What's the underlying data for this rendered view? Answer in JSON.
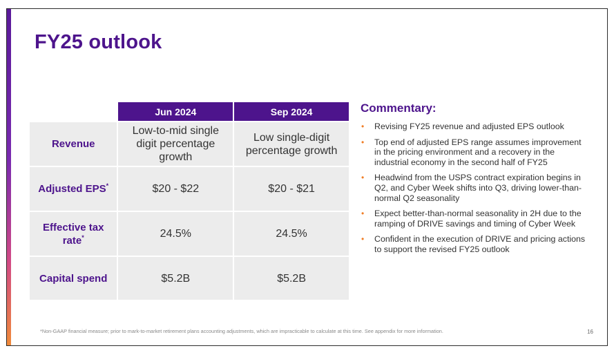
{
  "title": "FY25 outlook",
  "table": {
    "columns": [
      "Jun 2024",
      "Sep 2024"
    ],
    "rows": [
      {
        "label": "Revenue",
        "sup": "",
        "jun": "Low-to-mid single digit percentage growth",
        "sep": "Low single-digit percentage growth"
      },
      {
        "label": "Adjusted EPS",
        "sup": "*",
        "jun": "$20 - $22",
        "sep": "$20 - $21"
      },
      {
        "label": "Effective tax rate",
        "sup": "*",
        "jun": "24.5%",
        "sep": "24.5%"
      },
      {
        "label": "Capital spend",
        "sup": "",
        "jun": "$5.2B",
        "sep": "$5.2B"
      }
    ]
  },
  "commentary": {
    "heading": "Commentary:",
    "bullet_glyph": "•",
    "items": [
      "Revising FY25 revenue and adjusted EPS outlook",
      "Top end of adjusted EPS range assumes improvement in the pricing environment and a recovery in the industrial economy in the second half of FY25",
      "Headwind from the USPS contract expiration begins in Q2, and Cyber Week shifts into Q3, driving lower-than-normal Q2 seasonality",
      "Expect better-than-normal seasonality in 2H due to the ramping of DRIVE savings and timing of Cyber Week",
      "Confident in the execution of DRIVE and pricing actions to support the revised FY25 outlook"
    ]
  },
  "footnote": "*Non-GAAP financial measure; prior to mark-to-market retirement plans accounting adjustments, which are impracticable to calculate at this time. See appendix for more information.",
  "page_number": "16",
  "colors": {
    "brand_purple": "#4d148c",
    "bullet_orange": "#f07e26",
    "cell_gray": "#ececec"
  }
}
